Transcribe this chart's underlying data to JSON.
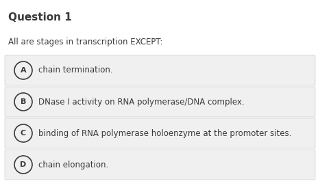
{
  "title": "Question 1",
  "question": "All are stages in transcription EXCEPT:",
  "options": [
    {
      "label": "A",
      "text": "chain termination."
    },
    {
      "label": "B",
      "text": "DNase I activity on RNA polymerase/DNA complex."
    },
    {
      "label": "C",
      "text": "binding of RNA polymerase holoenzyme at the promoter sites."
    },
    {
      "label": "D",
      "text": "chain elongation."
    }
  ],
  "bg_color": "#ffffff",
  "option_bg_color": "#f0f0f0",
  "option_border_color": "#d0d0d0",
  "title_color": "#3a3a3a",
  "question_color": "#3a3a3a",
  "option_text_color": "#3a3a3a",
  "label_color": "#3a3a3a",
  "title_fontsize": 11,
  "question_fontsize": 8.5,
  "option_fontsize": 8.5,
  "label_fontsize": 8,
  "fig_width": 4.67,
  "fig_height": 2.81
}
